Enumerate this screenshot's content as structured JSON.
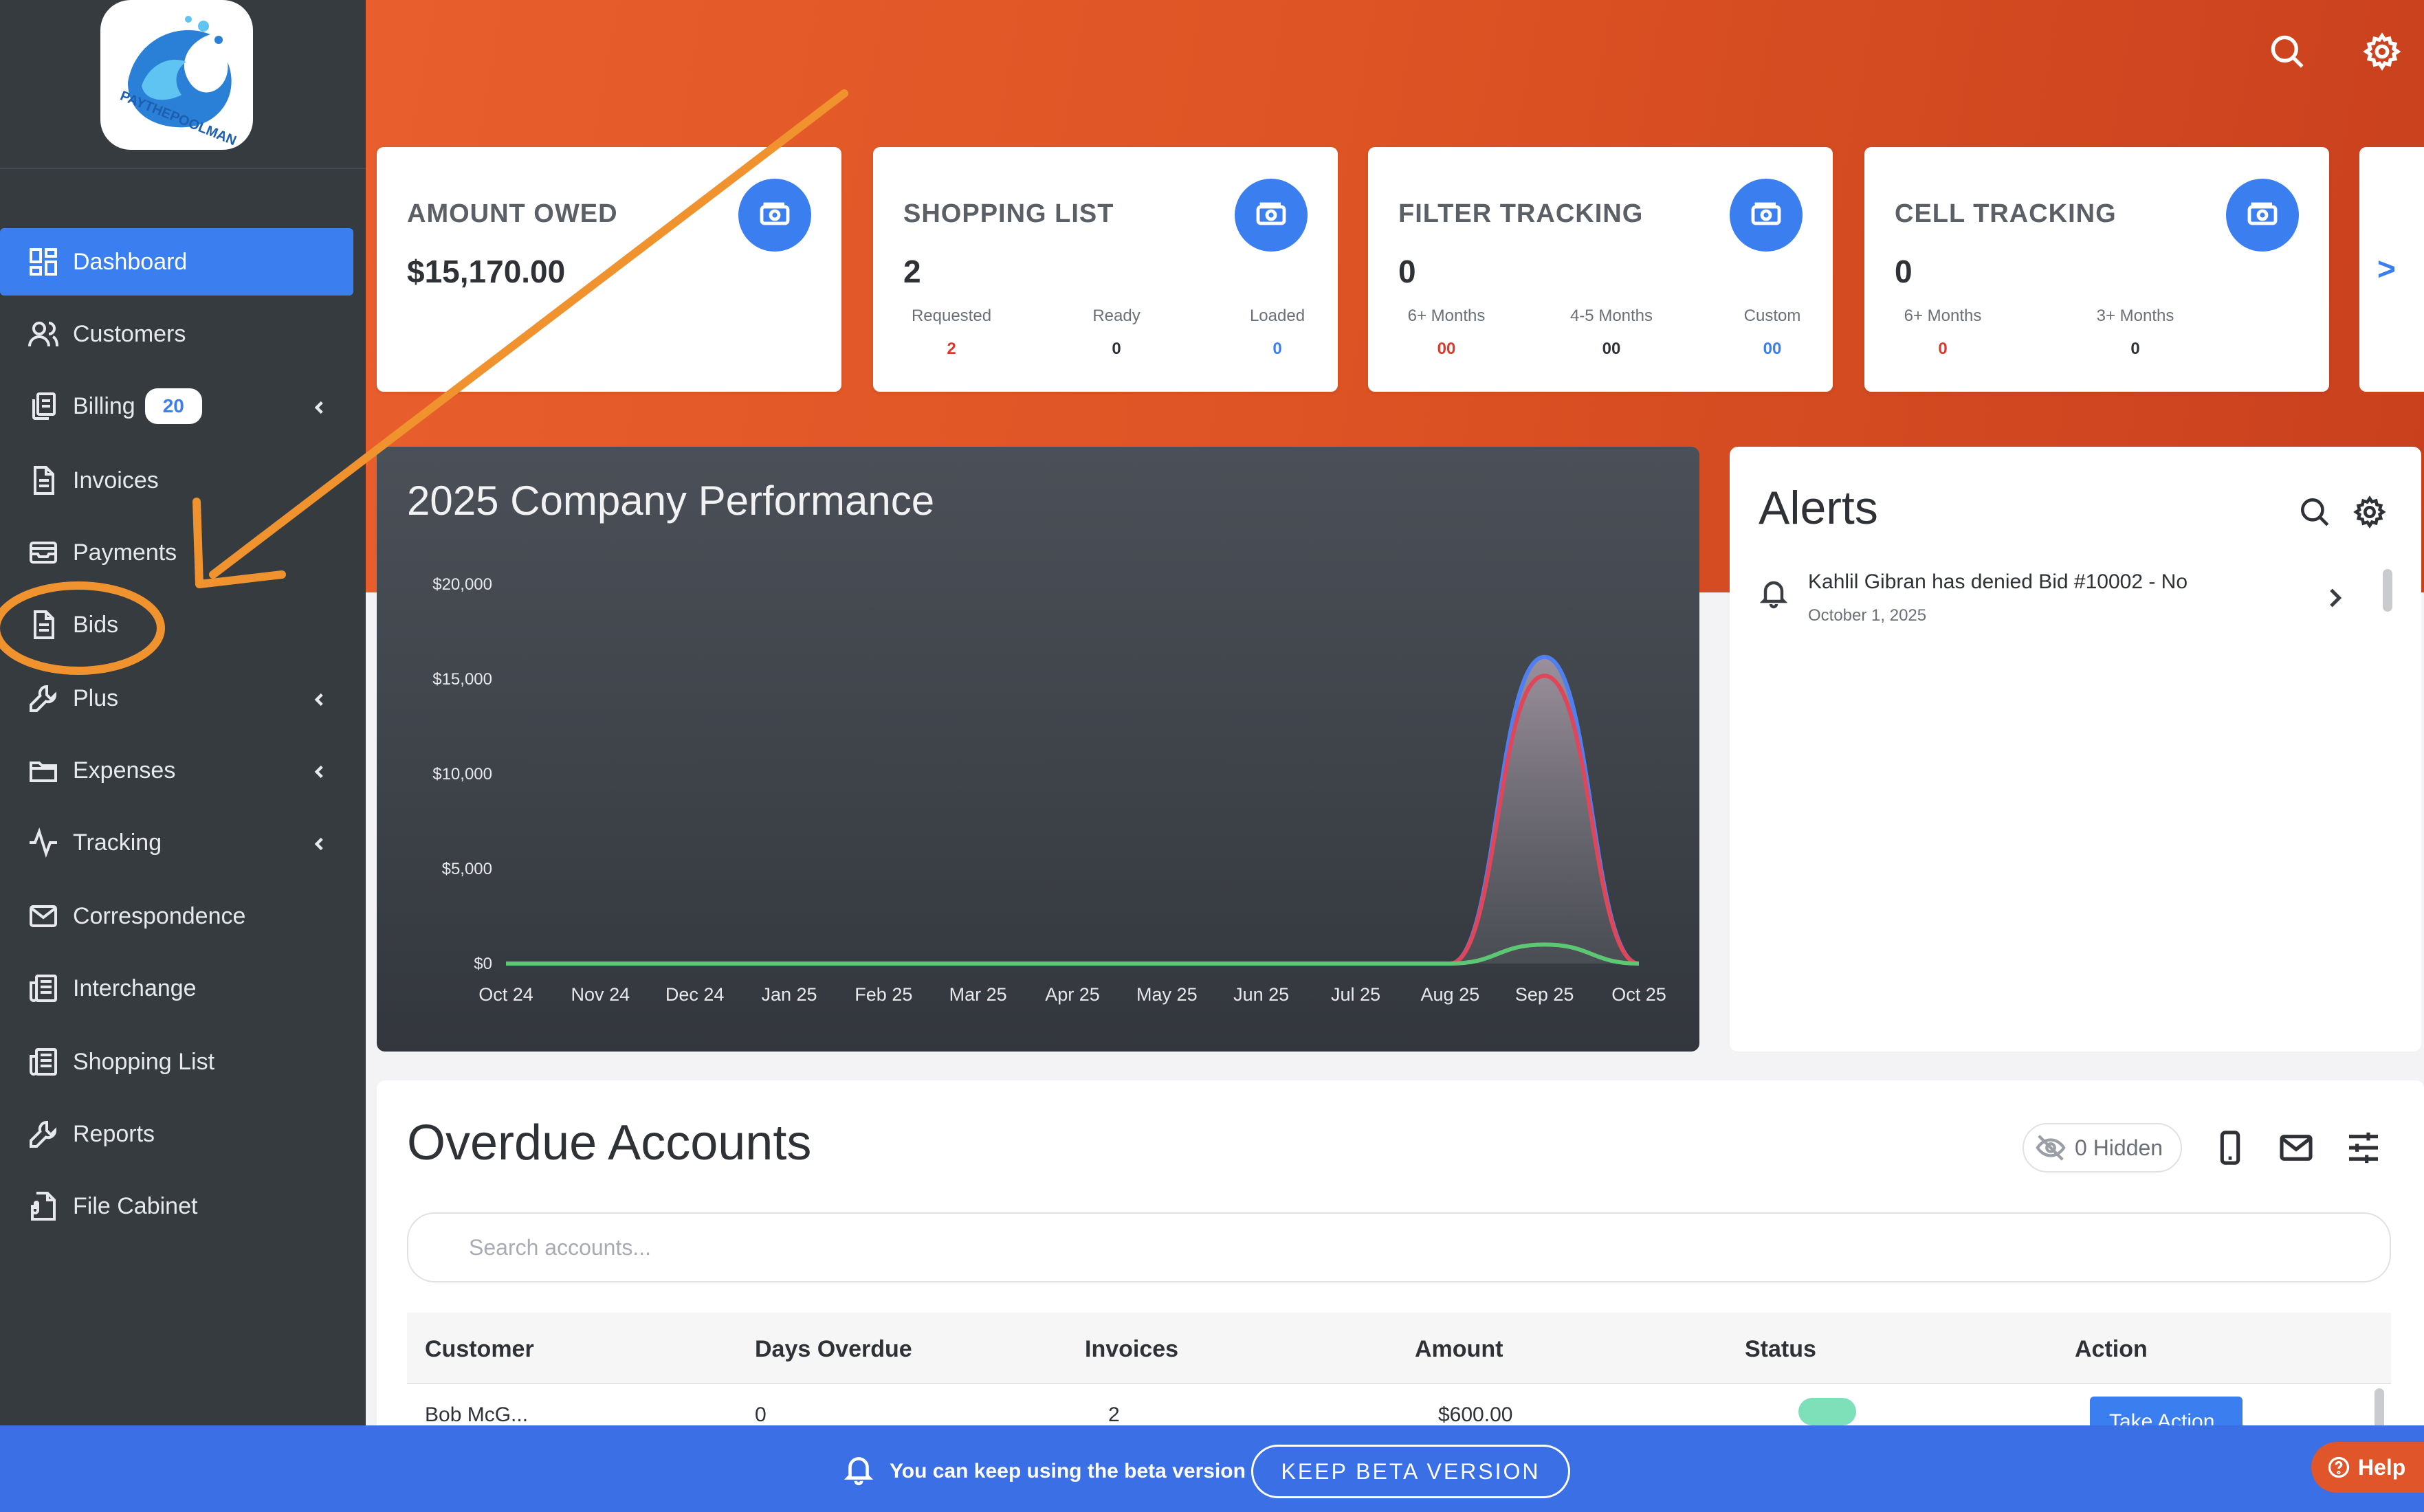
{
  "brand": {
    "logo_text": "PAYTHEPOOLMAN"
  },
  "sidebar": {
    "items": [
      {
        "label": "Dashboard",
        "icon": "dashboard-icon",
        "active": true
      },
      {
        "label": "Customers",
        "icon": "users-icon"
      },
      {
        "label": "Billing",
        "icon": "billing-icon",
        "badge": "20",
        "expandable": true
      },
      {
        "label": "Invoices",
        "icon": "document-icon"
      },
      {
        "label": "Payments",
        "icon": "payments-icon"
      },
      {
        "label": "Bids",
        "icon": "document-icon"
      },
      {
        "label": "Plus",
        "icon": "wrench-icon",
        "expandable": true
      },
      {
        "label": "Expenses",
        "icon": "folder-icon",
        "expandable": true
      },
      {
        "label": "Tracking",
        "icon": "activity-icon",
        "expandable": true
      },
      {
        "label": "Correspondence",
        "icon": "mail-icon"
      },
      {
        "label": "Interchange",
        "icon": "newspaper-icon"
      },
      {
        "label": "Shopping List",
        "icon": "newspaper-icon"
      },
      {
        "label": "Reports",
        "icon": "wrench-icon"
      },
      {
        "label": "File Cabinet",
        "icon": "file-cabinet-icon"
      }
    ]
  },
  "header": {
    "icons": [
      "search-icon",
      "gear-icon"
    ]
  },
  "cards": [
    {
      "title": "AMOUNT OWED",
      "value": "$15,170.00"
    },
    {
      "title": "SHOPPING LIST",
      "value": "2",
      "stats": [
        {
          "label": "Requested",
          "value": "2",
          "color": "#d93a2b"
        },
        {
          "label": "Ready",
          "value": "0",
          "color": "#2e3136"
        },
        {
          "label": "Loaded",
          "value": "0",
          "color": "#3b7ef0"
        }
      ]
    },
    {
      "title": "FILTER TRACKING",
      "value": "0",
      "stats": [
        {
          "label": "6+ Months",
          "value": "00",
          "color": "#d93a2b"
        },
        {
          "label": "4-5 Months",
          "value": "00",
          "color": "#2e3136"
        },
        {
          "label": "Custom",
          "value": "00",
          "color": "#3b7ef0"
        }
      ]
    },
    {
      "title": "CELL TRACKING",
      "value": "0",
      "stats": [
        {
          "label": "6+ Months",
          "value": "0",
          "color": "#d93a2b"
        },
        {
          "label": "3+ Months",
          "value": "0",
          "color": "#2e3136"
        }
      ]
    }
  ],
  "card_next": ">",
  "chart_data": {
    "type": "area",
    "title": "2025 Company Performance",
    "categories": [
      "Oct 24",
      "Nov 24",
      "Dec 24",
      "Jan 25",
      "Feb 25",
      "Mar 25",
      "Apr 25",
      "May 25",
      "Jun 25",
      "Jul 25",
      "Aug 25",
      "Sep 25",
      "Oct 25"
    ],
    "ylim": [
      0,
      20000
    ],
    "yticks": [
      "$0",
      "$5,000",
      "$10,000",
      "$15,000",
      "$20,000"
    ],
    "ytick_values": [
      0,
      5000,
      10000,
      15000,
      20000
    ],
    "series": [
      {
        "color": "#4f7ff0",
        "values": [
          0,
          0,
          0,
          0,
          0,
          0,
          0,
          0,
          0,
          0,
          0,
          16170,
          0
        ]
      },
      {
        "color": "#e0465a",
        "values": [
          0,
          0,
          0,
          0,
          0,
          0,
          0,
          0,
          0,
          0,
          0,
          15170,
          0
        ]
      },
      {
        "color": "#5cc873",
        "values": [
          0,
          0,
          0,
          0,
          0,
          0,
          0,
          0,
          0,
          0,
          0,
          1000,
          0
        ]
      }
    ],
    "grid": false,
    "legend": "none"
  },
  "alerts": {
    "title": "Alerts",
    "items": [
      {
        "text": "Kahlil Gibran has denied Bid #10002 - No",
        "date": "October 1, 2025"
      }
    ]
  },
  "overdue": {
    "title": "Overdue Accounts",
    "hidden_label": "0 Hidden",
    "search_placeholder": "Search accounts...",
    "columns": [
      "Customer",
      "Days Overdue",
      "Invoices",
      "Amount",
      "Status",
      "Action"
    ],
    "first_row": {
      "customer": "Bob McG...",
      "days": "0",
      "invoices": "2",
      "amount": "$600.00",
      "action": "Take Action"
    }
  },
  "beta": {
    "message": "You can keep using the beta version",
    "button": "KEEP BETA VERSION"
  },
  "help": {
    "label": "Help"
  },
  "annotation": {
    "color": "#f0922e"
  }
}
